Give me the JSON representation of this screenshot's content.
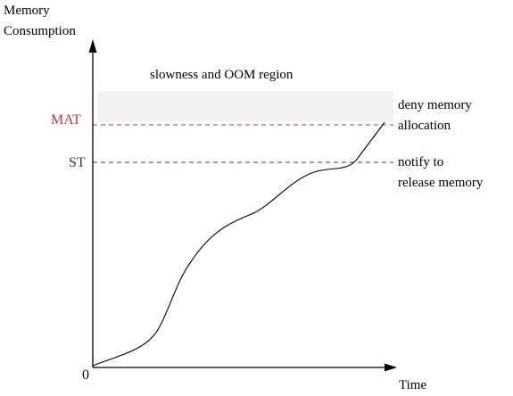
{
  "colors": {
    "mat": "#cc3333",
    "st": "#333399",
    "region_fill": "#f2f2f2",
    "axis": "#000000",
    "curve": "#000000"
  },
  "axes": {
    "y_title_line1": "Memory",
    "y_title_line2": "Consumption",
    "x_title": "Time",
    "origin": "0"
  },
  "region": {
    "label": "slowness and OOM region"
  },
  "thresholds": {
    "mat": {
      "label": "MAT",
      "note_line1": "deny memory",
      "note_line2": "allocation"
    },
    "st": {
      "label": "ST",
      "note_line1": "notify to",
      "note_line2": "release memory"
    }
  }
}
